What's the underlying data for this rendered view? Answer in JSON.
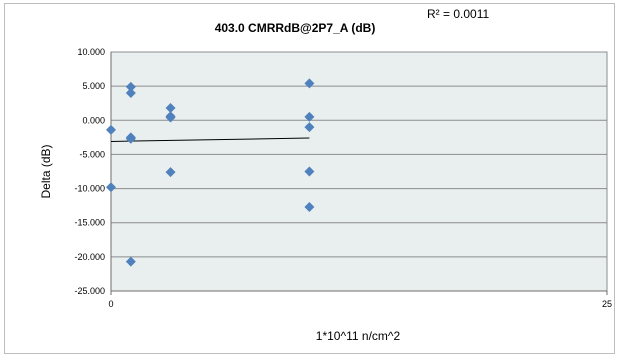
{
  "chart_data": {
    "type": "scatter",
    "title": "403.0  CMRRdB@2P7_A (dB)",
    "annotation": "R² = 0.0011",
    "xlabel": "1*10^11 n/cm^2",
    "ylabel": "Delta (dB)",
    "xlim": [
      0,
      25
    ],
    "ylim": [
      -25,
      10
    ],
    "x_ticks": [
      "0",
      "25"
    ],
    "y_ticks": [
      "10.000",
      "5.000",
      "0.000",
      "-5.000",
      "-10.000",
      "-15.000",
      "-20.000",
      "-25.000"
    ],
    "grid": true,
    "marker_color": "#4F81BD",
    "plot_background": "#E9EFEF",
    "series": [
      {
        "points": [
          {
            "x": 0,
            "y": -1.4
          },
          {
            "x": 0,
            "y": -9.8
          },
          {
            "x": 1,
            "y": 4.9
          },
          {
            "x": 1,
            "y": 4.0
          },
          {
            "x": 1,
            "y": -2.7
          },
          {
            "x": 1,
            "y": -2.5
          },
          {
            "x": 1,
            "y": -20.7
          },
          {
            "x": 3,
            "y": 1.8
          },
          {
            "x": 3,
            "y": 0.6
          },
          {
            "x": 3,
            "y": 0.4
          },
          {
            "x": 3,
            "y": -7.6
          },
          {
            "x": 10,
            "y": 5.4
          },
          {
            "x": 10,
            "y": 0.5
          },
          {
            "x": 10,
            "y": -1.0
          },
          {
            "x": 10,
            "y": -7.5
          },
          {
            "x": 10,
            "y": -12.7
          }
        ]
      }
    ],
    "trendline": {
      "x": [
        0,
        10
      ],
      "y": [
        -3.1,
        -2.6
      ]
    }
  }
}
